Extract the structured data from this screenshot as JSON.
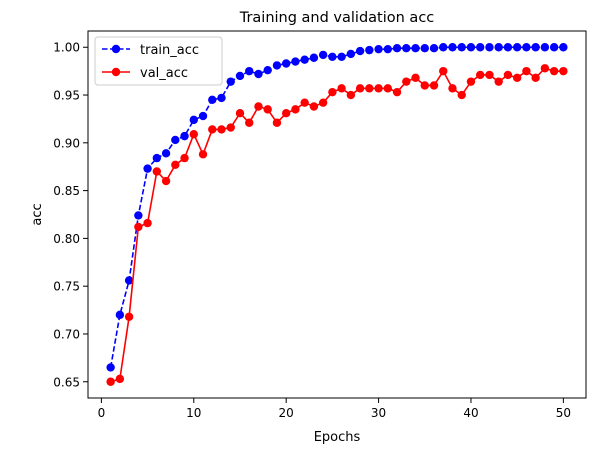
{
  "chart_data": {
    "type": "line",
    "title": "Training and validation acc",
    "xlabel": "Epochs",
    "ylabel": "acc",
    "xlim": [
      -1.45,
      52.45
    ],
    "ylim": [
      0.633,
      1.017
    ],
    "xticks": [
      0,
      10,
      20,
      30,
      40,
      50
    ],
    "xtick_labels": [
      "0",
      "10",
      "20",
      "30",
      "40",
      "50"
    ],
    "yticks": [
      0.65,
      0.7,
      0.75,
      0.8,
      0.85,
      0.9,
      0.95,
      1.0
    ],
    "ytick_labels": [
      "0.65",
      "0.70",
      "0.75",
      "0.80",
      "0.85",
      "0.90",
      "0.95",
      "1.00"
    ],
    "grid": false,
    "legend_position": "upper left",
    "x": [
      1,
      2,
      3,
      4,
      5,
      6,
      7,
      8,
      9,
      10,
      11,
      12,
      13,
      14,
      15,
      16,
      17,
      18,
      19,
      20,
      21,
      22,
      23,
      24,
      25,
      26,
      27,
      28,
      29,
      30,
      31,
      32,
      33,
      34,
      35,
      36,
      37,
      38,
      39,
      40,
      41,
      42,
      43,
      44,
      45,
      46,
      47,
      48,
      49,
      50
    ],
    "series": [
      {
        "name": "train_acc",
        "color": "#0000ff",
        "line_style": "dashed",
        "marker": "circle",
        "values": [
          0.665,
          0.72,
          0.756,
          0.824,
          0.873,
          0.884,
          0.889,
          0.903,
          0.907,
          0.924,
          0.928,
          0.945,
          0.947,
          0.964,
          0.97,
          0.975,
          0.972,
          0.976,
          0.981,
          0.983,
          0.985,
          0.987,
          0.989,
          0.992,
          0.99,
          0.99,
          0.993,
          0.996,
          0.997,
          0.998,
          0.998,
          0.999,
          0.999,
          0.999,
          0.999,
          0.999,
          1.0,
          1.0,
          1.0,
          1.0,
          1.0,
          1.0,
          1.0,
          1.0,
          1.0,
          1.0,
          1.0,
          1.0,
          1.0,
          1.0
        ]
      },
      {
        "name": "val_acc",
        "color": "#ff0000",
        "line_style": "solid",
        "marker": "circle",
        "values": [
          0.65,
          0.653,
          0.718,
          0.812,
          0.816,
          0.87,
          0.86,
          0.877,
          0.884,
          0.909,
          0.888,
          0.914,
          0.914,
          0.916,
          0.931,
          0.921,
          0.938,
          0.935,
          0.921,
          0.931,
          0.935,
          0.942,
          0.938,
          0.942,
          0.953,
          0.957,
          0.95,
          0.957,
          0.957,
          0.957,
          0.957,
          0.953,
          0.964,
          0.968,
          0.96,
          0.96,
          0.975,
          0.957,
          0.95,
          0.964,
          0.971,
          0.971,
          0.964,
          0.971,
          0.968,
          0.975,
          0.968,
          0.978,
          0.975,
          0.975
        ]
      }
    ]
  }
}
